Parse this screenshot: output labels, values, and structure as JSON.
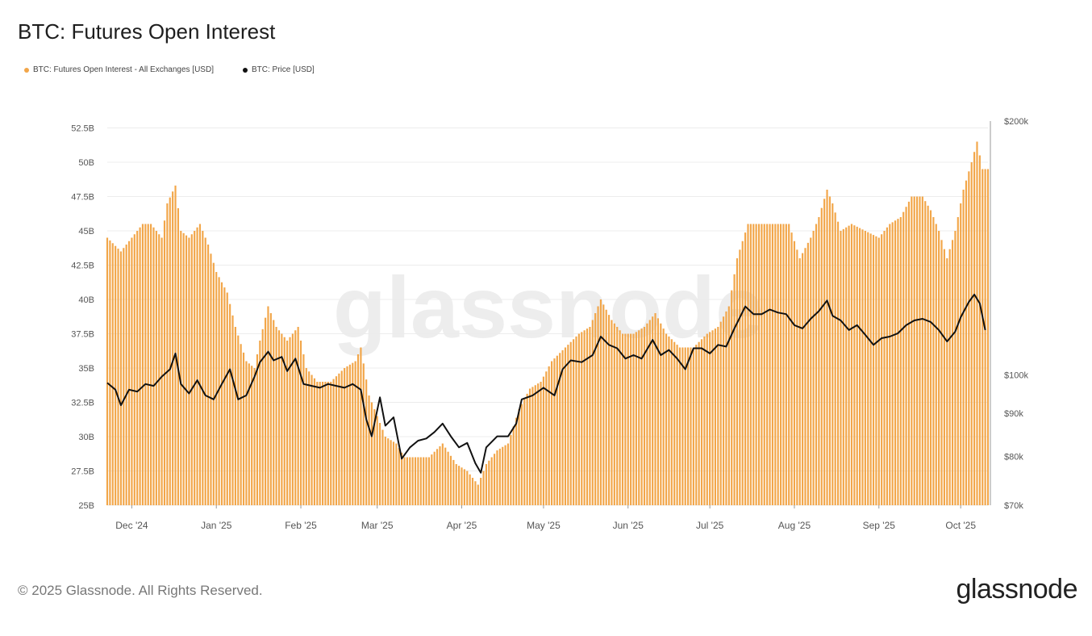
{
  "title": "BTC: Futures Open Interest",
  "legend": [
    {
      "label": "BTC: Futures Open Interest - All Exchanges [USD]",
      "color": "#f2a649"
    },
    {
      "label": "BTC: Price [USD]",
      "color": "#111111"
    }
  ],
  "watermark": "glassnode",
  "footer": {
    "copyright": "© 2025 Glassnode. All Rights Reserved.",
    "logo": "glassnode"
  },
  "chart_data": {
    "type": "bar",
    "x_ticks": [
      "Dec '24",
      "Jan '25",
      "Feb '25",
      "Mar '25",
      "Apr '25",
      "May '25",
      "Jun '25",
      "Jul '25",
      "Aug '25",
      "Sep '25",
      "Oct '25"
    ],
    "left_axis": {
      "ticks": [
        "25B",
        "27.5B",
        "30B",
        "32.5B",
        "35B",
        "37.5B",
        "40B",
        "42.5B",
        "45B",
        "47.5B",
        "50B",
        "52.5B"
      ],
      "range": [
        25,
        53
      ]
    },
    "right_axis": {
      "ticks": [
        "$70k",
        "$80k",
        "$90k",
        "$100k",
        "$200k"
      ],
      "scale": "log",
      "range": [
        70000,
        200000
      ]
    },
    "grid": "horizontal",
    "x_range": [
      "2024-11-22",
      "2025-10-11"
    ],
    "series": [
      {
        "name": "BTC: Futures Open Interest - All Exchanges [USD]",
        "type": "bar",
        "axis": "left",
        "unit": "B USD",
        "color": "#f2a649",
        "points": [
          [
            "2024-11-22",
            44.5
          ],
          [
            "2024-11-27",
            43.5
          ],
          [
            "2024-12-01",
            44.5
          ],
          [
            "2024-12-05",
            45.5
          ],
          [
            "2024-12-08",
            45.5
          ],
          [
            "2024-12-12",
            44.5
          ],
          [
            "2024-12-14",
            47.0
          ],
          [
            "2024-12-17",
            48.3
          ],
          [
            "2024-12-19",
            45.0
          ],
          [
            "2024-12-22",
            44.5
          ],
          [
            "2024-12-26",
            45.5
          ],
          [
            "2024-12-29",
            44.0
          ],
          [
            "2025-01-01",
            42.0
          ],
          [
            "2025-01-05",
            40.5
          ],
          [
            "2025-01-08",
            38.0
          ],
          [
            "2025-01-12",
            35.5
          ],
          [
            "2025-01-15",
            35.0
          ],
          [
            "2025-01-17",
            37.0
          ],
          [
            "2025-01-20",
            39.5
          ],
          [
            "2025-01-23",
            38.0
          ],
          [
            "2025-01-27",
            37.0
          ],
          [
            "2025-01-31",
            38.0
          ],
          [
            "2025-02-03",
            35.0
          ],
          [
            "2025-02-07",
            34.0
          ],
          [
            "2025-02-12",
            34.0
          ],
          [
            "2025-02-17",
            35.0
          ],
          [
            "2025-02-21",
            35.5
          ],
          [
            "2025-02-23",
            36.5
          ],
          [
            "2025-02-26",
            33.0
          ],
          [
            "2025-03-01",
            31.5
          ],
          [
            "2025-03-04",
            30.0
          ],
          [
            "2025-03-08",
            29.5
          ],
          [
            "2025-03-11",
            28.5
          ],
          [
            "2025-03-15",
            28.5
          ],
          [
            "2025-03-20",
            28.5
          ],
          [
            "2025-03-25",
            29.5
          ],
          [
            "2025-03-30",
            28.0
          ],
          [
            "2025-04-03",
            27.5
          ],
          [
            "2025-04-07",
            26.5
          ],
          [
            "2025-04-10",
            28.0
          ],
          [
            "2025-04-14",
            29.0
          ],
          [
            "2025-04-18",
            29.5
          ],
          [
            "2025-04-22",
            32.0
          ],
          [
            "2025-04-26",
            33.5
          ],
          [
            "2025-04-30",
            34.0
          ],
          [
            "2025-05-04",
            35.5
          ],
          [
            "2025-05-09",
            36.5
          ],
          [
            "2025-05-14",
            37.5
          ],
          [
            "2025-05-18",
            38.0
          ],
          [
            "2025-05-22",
            40.0
          ],
          [
            "2025-05-26",
            38.5
          ],
          [
            "2025-05-30",
            37.5
          ],
          [
            "2025-06-03",
            37.5
          ],
          [
            "2025-06-07",
            38.0
          ],
          [
            "2025-06-11",
            39.0
          ],
          [
            "2025-06-15",
            37.5
          ],
          [
            "2025-06-20",
            36.5
          ],
          [
            "2025-06-25",
            36.5
          ],
          [
            "2025-06-30",
            37.5
          ],
          [
            "2025-07-04",
            38.0
          ],
          [
            "2025-07-08",
            39.5
          ],
          [
            "2025-07-11",
            43.0
          ],
          [
            "2025-07-15",
            45.5
          ],
          [
            "2025-07-20",
            45.5
          ],
          [
            "2025-07-25",
            45.5
          ],
          [
            "2025-07-30",
            45.5
          ],
          [
            "2025-08-03",
            43.0
          ],
          [
            "2025-08-07",
            44.5
          ],
          [
            "2025-08-10",
            46.0
          ],
          [
            "2025-08-13",
            48.0
          ],
          [
            "2025-08-15",
            47.0
          ],
          [
            "2025-08-18",
            45.0
          ],
          [
            "2025-08-22",
            45.5
          ],
          [
            "2025-08-27",
            45.0
          ],
          [
            "2025-09-01",
            44.5
          ],
          [
            "2025-09-05",
            45.5
          ],
          [
            "2025-09-09",
            46.0
          ],
          [
            "2025-09-13",
            47.5
          ],
          [
            "2025-09-17",
            47.5
          ],
          [
            "2025-09-20",
            46.5
          ],
          [
            "2025-09-23",
            45.0
          ],
          [
            "2025-09-26",
            43.0
          ],
          [
            "2025-09-29",
            45.0
          ],
          [
            "2025-10-02",
            48.0
          ],
          [
            "2025-10-05",
            50.0
          ],
          [
            "2025-10-07",
            51.5
          ],
          [
            "2025-10-09",
            49.5
          ],
          [
            "2025-10-11",
            49.5
          ]
        ]
      },
      {
        "name": "BTC: Price [USD]",
        "type": "line",
        "axis": "right",
        "unit": "USD",
        "color": "#111111",
        "points": [
          [
            "2024-11-22",
            97800
          ],
          [
            "2024-11-25",
            96000
          ],
          [
            "2024-11-27",
            92000
          ],
          [
            "2024-11-30",
            96000
          ],
          [
            "2024-12-03",
            95500
          ],
          [
            "2024-12-06",
            97500
          ],
          [
            "2024-12-09",
            97000
          ],
          [
            "2024-12-12",
            99500
          ],
          [
            "2024-12-15",
            101500
          ],
          [
            "2024-12-17",
            106000
          ],
          [
            "2024-12-19",
            97500
          ],
          [
            "2024-12-22",
            95000
          ],
          [
            "2024-12-25",
            98500
          ],
          [
            "2024-12-28",
            94500
          ],
          [
            "2024-12-31",
            93500
          ],
          [
            "2025-01-03",
            97500
          ],
          [
            "2025-01-06",
            101500
          ],
          [
            "2025-01-09",
            93500
          ],
          [
            "2025-01-12",
            94500
          ],
          [
            "2025-01-15",
            99500
          ],
          [
            "2025-01-17",
            103500
          ],
          [
            "2025-01-20",
            106500
          ],
          [
            "2025-01-22",
            104000
          ],
          [
            "2025-01-25",
            105000
          ],
          [
            "2025-01-27",
            101000
          ],
          [
            "2025-01-30",
            104500
          ],
          [
            "2025-02-02",
            97500
          ],
          [
            "2025-02-05",
            97000
          ],
          [
            "2025-02-08",
            96500
          ],
          [
            "2025-02-11",
            97500
          ],
          [
            "2025-02-14",
            97000
          ],
          [
            "2025-02-17",
            96500
          ],
          [
            "2025-02-20",
            97500
          ],
          [
            "2025-02-23",
            96000
          ],
          [
            "2025-02-25",
            88500
          ],
          [
            "2025-02-27",
            84500
          ],
          [
            "2025-03-02",
            94000
          ],
          [
            "2025-03-04",
            87000
          ],
          [
            "2025-03-07",
            89000
          ],
          [
            "2025-03-10",
            79500
          ],
          [
            "2025-03-13",
            82000
          ],
          [
            "2025-03-16",
            83500
          ],
          [
            "2025-03-19",
            84000
          ],
          [
            "2025-03-22",
            85500
          ],
          [
            "2025-03-25",
            87500
          ],
          [
            "2025-03-28",
            84500
          ],
          [
            "2025-03-31",
            82000
          ],
          [
            "2025-04-03",
            83000
          ],
          [
            "2025-04-06",
            78500
          ],
          [
            "2025-04-08",
            76500
          ],
          [
            "2025-04-10",
            82000
          ],
          [
            "2025-04-14",
            84500
          ],
          [
            "2025-04-18",
            84500
          ],
          [
            "2025-04-21",
            87500
          ],
          [
            "2025-04-23",
            93500
          ],
          [
            "2025-04-27",
            94500
          ],
          [
            "2025-05-01",
            96500
          ],
          [
            "2025-05-05",
            94500
          ],
          [
            "2025-05-08",
            101500
          ],
          [
            "2025-05-11",
            104000
          ],
          [
            "2025-05-15",
            103500
          ],
          [
            "2025-05-19",
            105500
          ],
          [
            "2025-05-22",
            111000
          ],
          [
            "2025-05-25",
            108500
          ],
          [
            "2025-05-28",
            107500
          ],
          [
            "2025-05-31",
            104500
          ],
          [
            "2025-06-03",
            105500
          ],
          [
            "2025-06-06",
            104500
          ],
          [
            "2025-06-10",
            110000
          ],
          [
            "2025-06-13",
            105500
          ],
          [
            "2025-06-16",
            107000
          ],
          [
            "2025-06-19",
            104500
          ],
          [
            "2025-06-22",
            101500
          ],
          [
            "2025-06-25",
            107500
          ],
          [
            "2025-06-28",
            107500
          ],
          [
            "2025-07-01",
            106000
          ],
          [
            "2025-07-04",
            108500
          ],
          [
            "2025-07-07",
            108000
          ],
          [
            "2025-07-10",
            113500
          ],
          [
            "2025-07-14",
            120500
          ],
          [
            "2025-07-17",
            118000
          ],
          [
            "2025-07-20",
            118000
          ],
          [
            "2025-07-23",
            119500
          ],
          [
            "2025-07-26",
            118500
          ],
          [
            "2025-07-29",
            118000
          ],
          [
            "2025-08-01",
            114500
          ],
          [
            "2025-08-04",
            113500
          ],
          [
            "2025-08-07",
            116500
          ],
          [
            "2025-08-10",
            119000
          ],
          [
            "2025-08-13",
            122500
          ],
          [
            "2025-08-15",
            117500
          ],
          [
            "2025-08-18",
            116000
          ],
          [
            "2025-08-21",
            113000
          ],
          [
            "2025-08-24",
            114500
          ],
          [
            "2025-08-27",
            111500
          ],
          [
            "2025-08-30",
            108500
          ],
          [
            "2025-09-02",
            110500
          ],
          [
            "2025-09-05",
            111000
          ],
          [
            "2025-09-08",
            112000
          ],
          [
            "2025-09-11",
            114500
          ],
          [
            "2025-09-14",
            116000
          ],
          [
            "2025-09-17",
            116500
          ],
          [
            "2025-09-20",
            115500
          ],
          [
            "2025-09-23",
            113000
          ],
          [
            "2025-09-26",
            109500
          ],
          [
            "2025-09-29",
            112500
          ],
          [
            "2025-10-01",
            117000
          ],
          [
            "2025-10-04",
            122000
          ],
          [
            "2025-10-06",
            124500
          ],
          [
            "2025-10-08",
            121500
          ],
          [
            "2025-10-10",
            113000
          ]
        ]
      }
    ]
  }
}
